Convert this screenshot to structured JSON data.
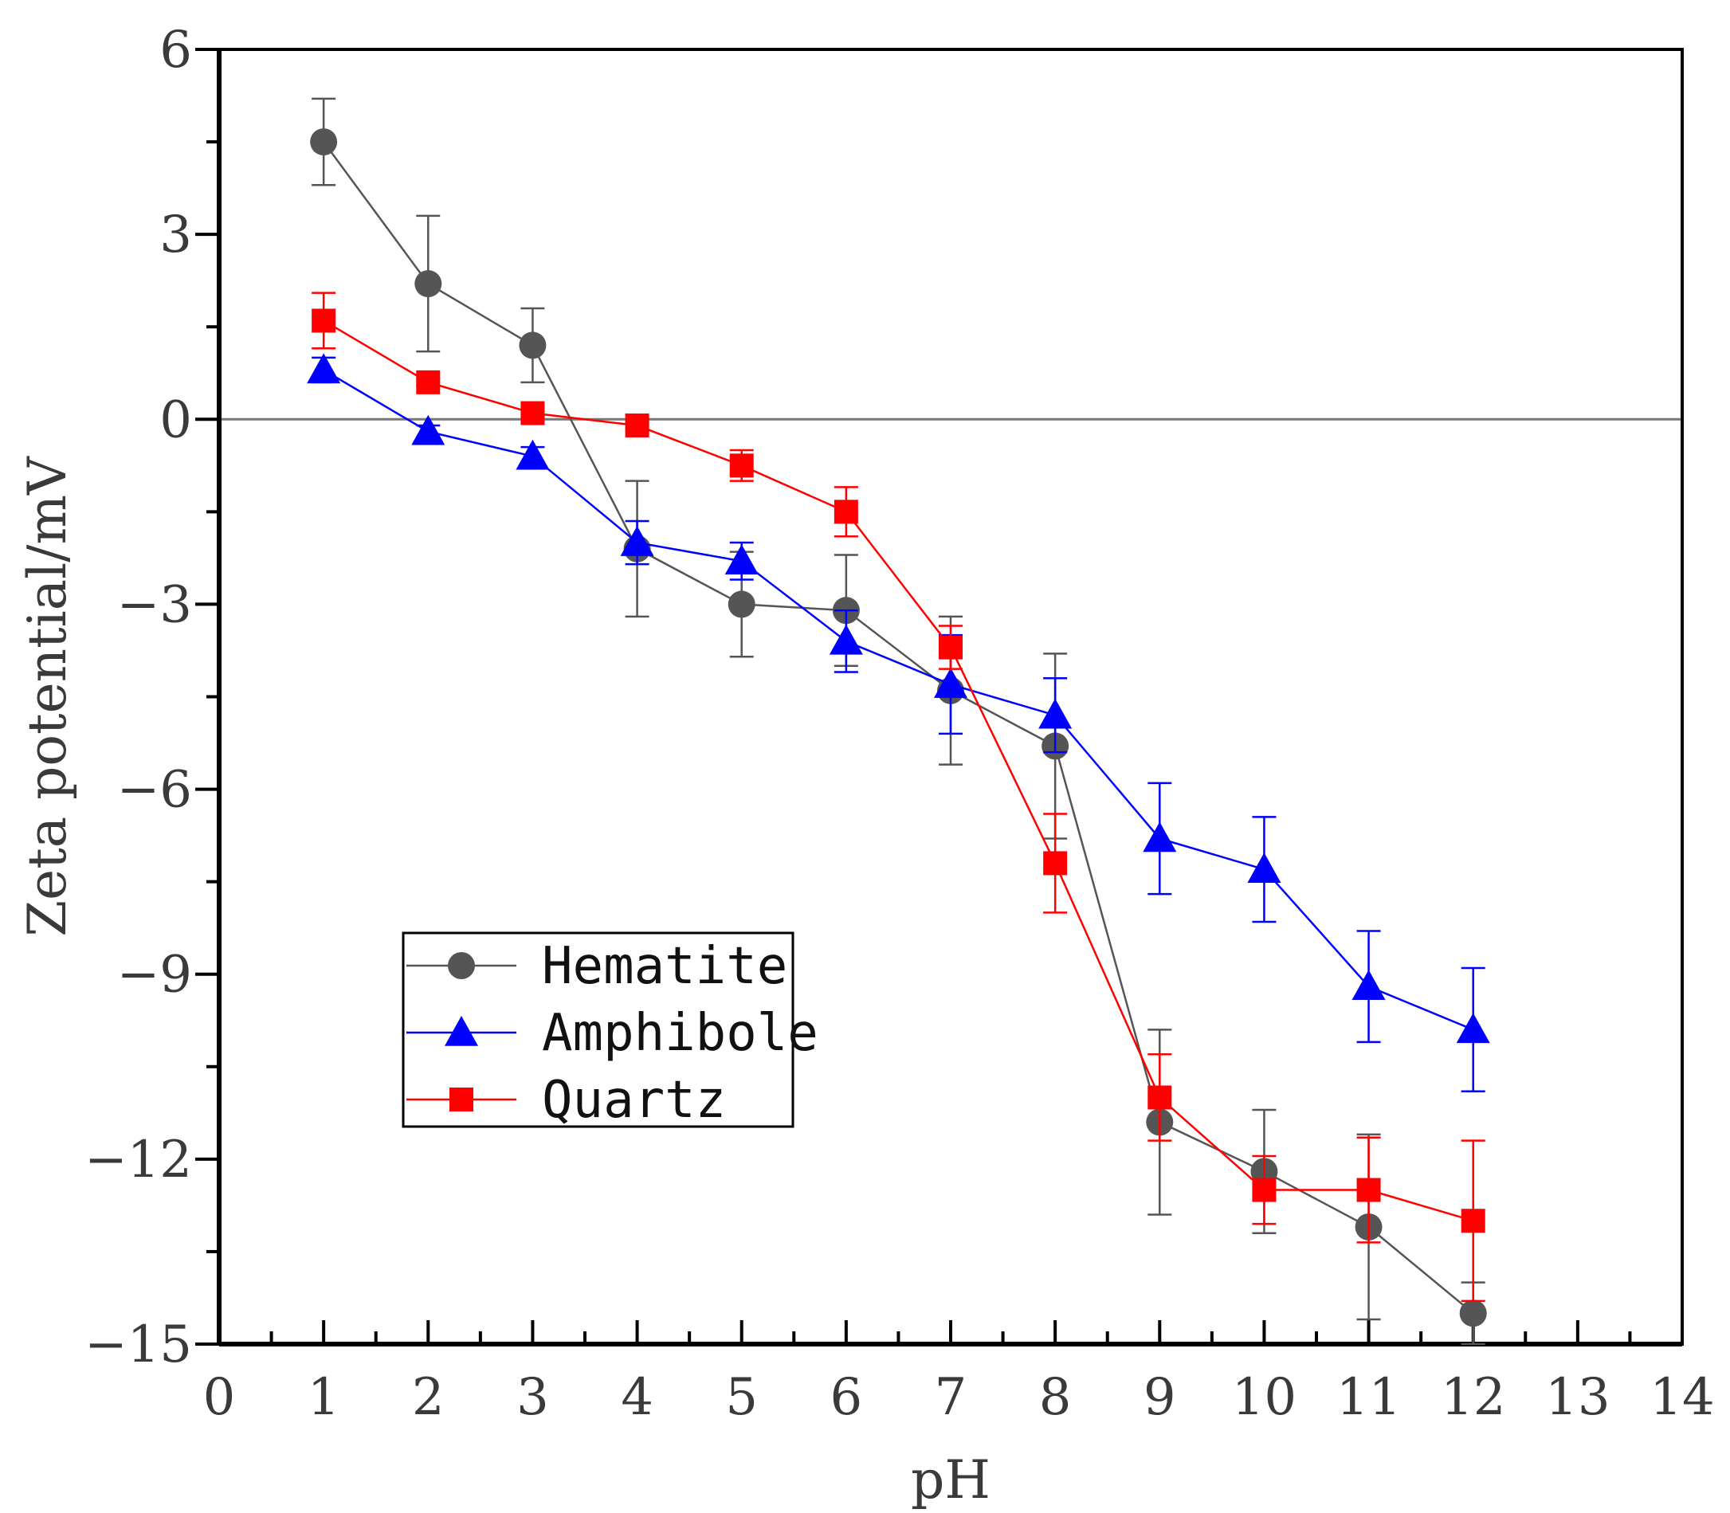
{
  "chart_data": {
    "type": "line",
    "title": "",
    "xlabel": "pH",
    "ylabel": "Zeta potential/mV",
    "xlim": [
      0,
      14
    ],
    "ylim": [
      -15,
      6
    ],
    "xticks": [
      "0",
      "1",
      "2",
      "3",
      "4",
      "5",
      "6",
      "7",
      "8",
      "9",
      "10",
      "11",
      "12",
      "13",
      "14"
    ],
    "xtick_values": [
      0,
      1,
      2,
      3,
      4,
      5,
      6,
      7,
      8,
      9,
      10,
      11,
      12,
      13,
      14
    ],
    "yticks": [
      "6",
      "3",
      "0",
      "−3",
      "−6",
      "−9",
      "−12",
      "−15"
    ],
    "ytick_values": [
      6,
      3,
      0,
      -3,
      -6,
      -9,
      -12,
      -15
    ],
    "zero_line": true,
    "grid": false,
    "legend_position": "lower-left",
    "x": [
      1,
      2,
      3,
      4,
      5,
      6,
      7,
      8,
      9,
      10,
      11,
      12
    ],
    "series": [
      {
        "name": "Hematite",
        "color": "#555555",
        "marker": "circle",
        "values": [
          4.5,
          2.2,
          1.2,
          -2.1,
          -3.0,
          -3.1,
          -4.4,
          -5.3,
          -11.4,
          -12.2,
          -13.1,
          -14.5
        ],
        "errors": [
          0.7,
          1.1,
          0.6,
          1.1,
          0.85,
          0.9,
          1.2,
          1.5,
          1.5,
          1.0,
          1.5,
          0.5
        ]
      },
      {
        "name": "Amphibole",
        "color": "#0000ff",
        "marker": "triangle",
        "values": [
          0.8,
          -0.2,
          -0.6,
          -2.0,
          -2.3,
          -3.6,
          -4.3,
          -4.8,
          -6.8,
          -7.3,
          -9.2,
          -9.9
        ],
        "errors": [
          0.2,
          0.1,
          0.15,
          0.35,
          0.3,
          0.5,
          0.8,
          0.6,
          0.9,
          0.85,
          0.9,
          1.0
        ]
      },
      {
        "name": "Quartz",
        "color": "#ff0000",
        "marker": "square",
        "values": [
          1.6,
          0.6,
          0.1,
          -0.1,
          -0.75,
          -1.5,
          -3.7,
          -7.2,
          -11.0,
          -12.5,
          -12.5,
          -13.0
        ],
        "errors": [
          0.45,
          0.05,
          0.05,
          0.05,
          0.25,
          0.4,
          0.35,
          0.8,
          0.7,
          0.55,
          0.85,
          1.3
        ]
      }
    ]
  }
}
